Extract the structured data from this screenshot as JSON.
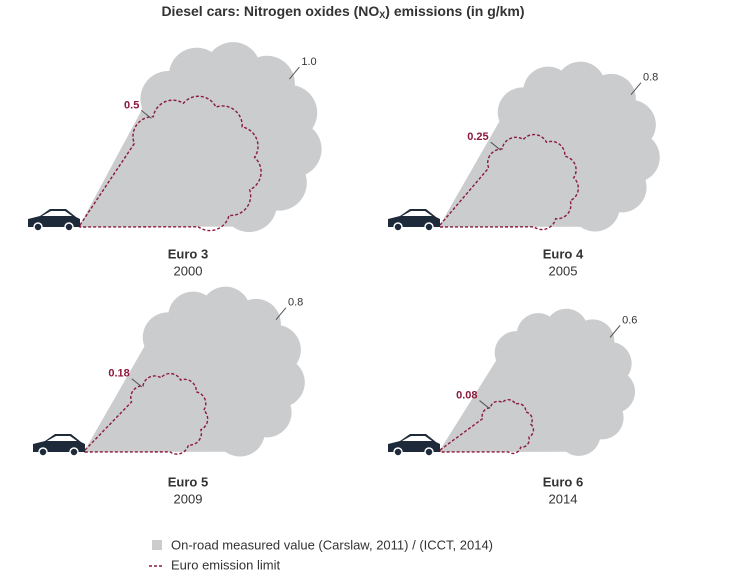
{
  "chart_data": {
    "type": "cloud",
    "title_parts": [
      "Diesel cars: Nitrogen oxides (NO",
      "X",
      ") emissions (in g/km)"
    ],
    "categories": [
      "Euro 3",
      "Euro 4",
      "Euro 5",
      "Euro 6"
    ],
    "years": [
      "2000",
      "2005",
      "2009",
      "2014"
    ],
    "series": [
      {
        "name": "On-road measured value (Carslaw, 2011) / (ICCT, 2014)",
        "color": "#cbccce",
        "values": [
          1.0,
          0.8,
          0.8,
          0.6
        ],
        "value_labels": [
          "1.0",
          "0.8",
          "0.8",
          "0.6"
        ]
      },
      {
        "name": "Euro emission limit",
        "color": "#8b1a3c",
        "values": [
          0.5,
          0.25,
          0.18,
          0.08
        ]
      }
    ]
  }
}
